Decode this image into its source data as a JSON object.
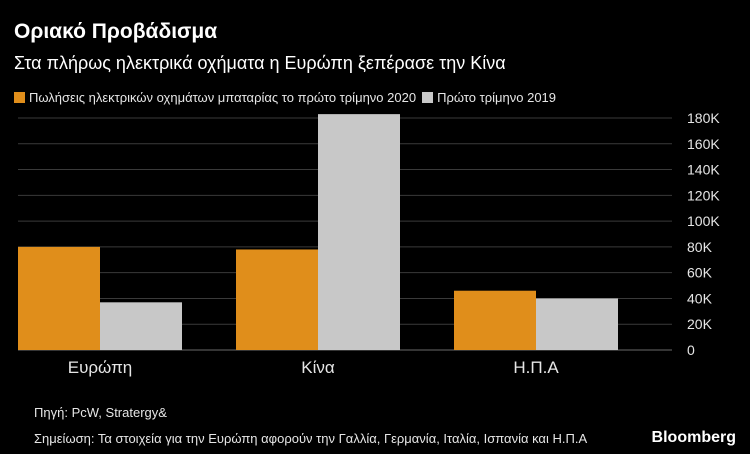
{
  "header": {
    "title": "Οριακό Προβάδισμα",
    "subtitle": "Στα πλήρως ηλεκτρικά οχήματα η Ευρώπη ξεπέρασε την Κίνα"
  },
  "footer": {
    "source": "Πηγή: PcW, Stratergy&",
    "note": "Σημείωση: Τα στοιχεία για την Ευρώπη αφορούν την Γαλλία, Γερμανία, Ιταλία, Ισπανία και Η.Π.Α",
    "brand": "Bloomberg"
  },
  "colors": {
    "background": "#000000",
    "series_2020": "#e08e1b",
    "series_2019": "#c8c8c8",
    "grid": "#3a3a3a",
    "text": "#e6e6e6"
  },
  "chart_data": {
    "type": "bar",
    "title": "Οριακό Προβάδισμα",
    "subtitle": "Στα πλήρως ηλεκτρικά οχήματα η Ευρώπη ξεπέρασε την Κίνα",
    "categories": [
      "Ευρώπη",
      "Κίνα",
      "Η.Π.Α"
    ],
    "series": [
      {
        "name": "Πωλήσεις ηλεκτρικών οχημάτων μπαταρίας το πρώτο τρίμηνο 2020",
        "values": [
          80000,
          78000,
          46000
        ],
        "color": "#e08e1b"
      },
      {
        "name": "Πρώτο τρίμηνο 2019",
        "values": [
          37000,
          183000,
          40000
        ],
        "color": "#c8c8c8"
      }
    ],
    "ylim": [
      0,
      180000
    ],
    "yticks": [
      0,
      20000,
      40000,
      60000,
      80000,
      100000,
      120000,
      140000,
      160000,
      180000
    ],
    "ytick_labels": [
      "0",
      "20K",
      "40K",
      "60K",
      "80K",
      "100K",
      "120K",
      "140K",
      "160K",
      "180K"
    ],
    "y_axis_side": "right",
    "grid": true,
    "legend_position": "top-left",
    "xlabel": "",
    "ylabel": ""
  }
}
